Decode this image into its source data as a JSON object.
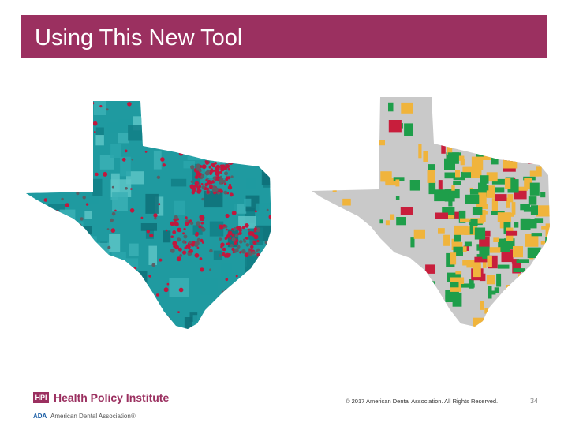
{
  "slide": {
    "title": "Using This New Tool",
    "page_number": "34"
  },
  "footer": {
    "hpi_logo": "HPI",
    "hpi_name": "Health Policy Institute",
    "ada_logo": "ADA",
    "ada_name": "American Dental Association®",
    "copyright": "© 2017 American Dental Association. All Rights Reserved."
  },
  "colors": {
    "title_bar": "#9b3060",
    "map1_fill": "#1f9aa0",
    "map1_dots": "#c0183e",
    "map2_base": "#c9c9c9",
    "map2_green": "#1e9e4a",
    "map2_orange": "#f0b43c",
    "map2_red": "#c81e3c"
  },
  "maps": [
    {
      "name": "texas-map-dentist-locations",
      "icon": "texas-choropleth"
    },
    {
      "name": "texas-map-county-classification",
      "icon": "texas-choropleth"
    }
  ]
}
